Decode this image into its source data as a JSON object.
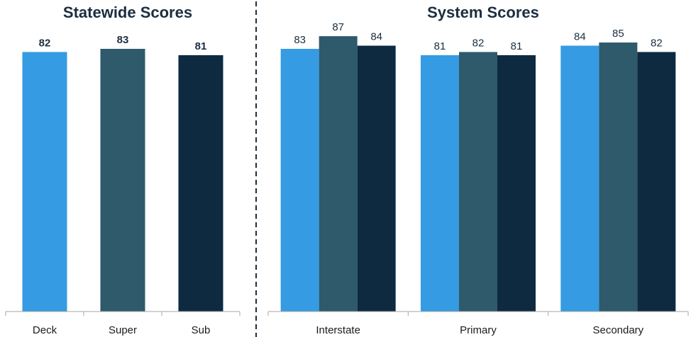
{
  "chart_data": [
    {
      "type": "bar",
      "title": "Statewide Scores",
      "categories": [
        "Deck",
        "Super",
        "Sub"
      ],
      "values": [
        82,
        83,
        81
      ],
      "colors": [
        "#359be3",
        "#2e5a6b",
        "#0d2a40"
      ],
      "label_style": "bold",
      "ylim": [
        0,
        100
      ],
      "grid": false,
      "legend": "none"
    },
    {
      "type": "bar",
      "title": "System Scores",
      "categories": [
        "Interstate",
        "Primary",
        "Secondary"
      ],
      "series": [
        {
          "values": [
            83,
            81,
            84
          ],
          "color": "#359be3"
        },
        {
          "values": [
            87,
            82,
            85
          ],
          "color": "#2e5a6b"
        },
        {
          "values": [
            84,
            81,
            82
          ],
          "color": "#0d2a40"
        }
      ],
      "label_style": "normal",
      "ylim": [
        0,
        100
      ],
      "grid": false,
      "legend": "none"
    }
  ],
  "colors": {
    "deck": "#359be3",
    "super": "#2e5a6b",
    "sub": "#0d2a40",
    "title": "#1b2e40",
    "divider": "#1b2e40"
  }
}
